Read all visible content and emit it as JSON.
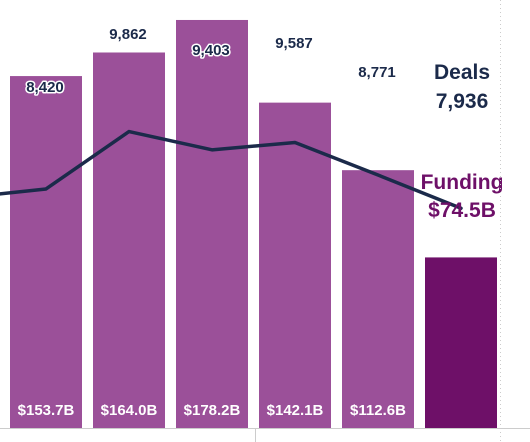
{
  "chart_data": {
    "type": "bar",
    "categories": [
      "",
      "",
      "",
      "",
      "",
      ""
    ],
    "series": [
      {
        "name": "Funding",
        "type": "bar",
        "values": [
          153.7,
          164.0,
          178.2,
          142.1,
          112.6,
          74.5
        ],
        "value_labels": [
          "$153.7B",
          "$164.0B",
          "$178.2B",
          "$142.1B",
          "$112.6B",
          ""
        ],
        "color": "#9b5099",
        "highlight_color": "#6e1068"
      },
      {
        "name": "Deals",
        "type": "line",
        "values": [
          8420,
          9862,
          9403,
          9587,
          8771,
          7936
        ],
        "value_labels": [
          "8,420",
          "9,862",
          "9,403",
          "9,587",
          "8,771",
          ""
        ],
        "color": "#1b2a4a"
      }
    ],
    "legend": {
      "deals_label": "Deals",
      "deals_value": "7,936",
      "funding_label": "Funding",
      "funding_value": "$74.5B",
      "placement": "right"
    },
    "axis_color": "#cccccc"
  }
}
